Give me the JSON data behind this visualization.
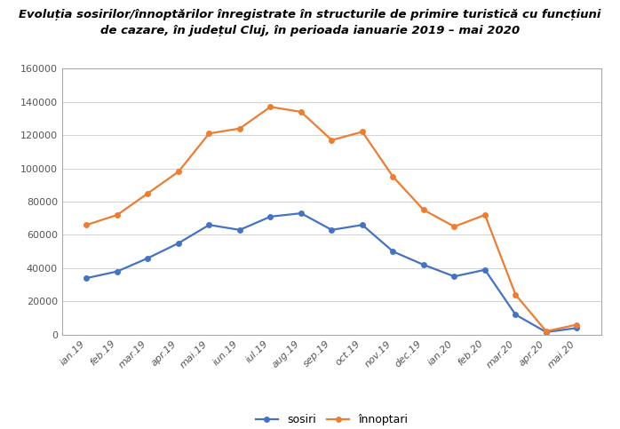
{
  "title_line1": "Evoluția sosirilor/înnoptărilor înregistrate în structurile de primire turistică cu funcțiuni",
  "title_line2": "de cazare, în județul Cluj, în perioada ianuarie 2019 – mai 2020",
  "categories": [
    "ian.19",
    "feb.19",
    "mar.19",
    "apr.19",
    "mai.19",
    "iun.19",
    "iul.19",
    "aug.19",
    "sep.19",
    "oct.19",
    "nov.19",
    "dec.19",
    "ian.20",
    "feb.20",
    "mar.20",
    "apr.20",
    "mai.20"
  ],
  "sosiri": [
    34000,
    38000,
    46000,
    55000,
    66000,
    63000,
    71000,
    73000,
    63000,
    66000,
    50000,
    42000,
    35000,
    39000,
    12000,
    1500,
    4000
  ],
  "innoptari": [
    66000,
    72000,
    85000,
    98000,
    121000,
    124000,
    137000,
    134000,
    117000,
    122000,
    95000,
    75000,
    65000,
    72000,
    24000,
    2000,
    6000
  ],
  "sosiri_color": "#4472C4",
  "innoptari_color": "#ED7D31",
  "legend_sosiri": "sosiri",
  "legend_innoptari": "înnoptari",
  "ylim": [
    0,
    160000
  ],
  "yticks": [
    0,
    20000,
    40000,
    60000,
    80000,
    100000,
    120000,
    140000,
    160000
  ],
  "bg_color": "#FFFFFF",
  "plot_bg_color": "#FFFFFF",
  "title_fontsize": 9.5,
  "tick_fontsize": 8,
  "legend_fontsize": 9,
  "markersize": 5,
  "linewidth": 1.6
}
